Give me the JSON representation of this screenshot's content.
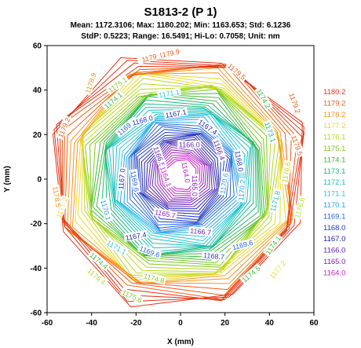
{
  "chart_data": {
    "type": "contour",
    "title": "S1813-2 (P 1)",
    "stats_line1": "Mean: 1172.3106; Max: 1180.202; Min: 1163.653; Std: 6.1236",
    "stats_line2": "StdP: 0.5223; Range: 16.5491; Hi-Lo: 0.7058; Unit: nm",
    "xlabel": "X (mm)",
    "ylabel": "Y (mm)",
    "xlim": [
      -60,
      60
    ],
    "ylim": [
      -60,
      60
    ],
    "xticks": [
      -60,
      -40,
      -20,
      0,
      20,
      40,
      60
    ],
    "yticks": [
      -60,
      -40,
      -20,
      0,
      20,
      40,
      60
    ],
    "wafer_radius": 60,
    "grid": false,
    "legend_position": "right",
    "legend": [
      {
        "label": "1180.2",
        "color": "#e53214"
      },
      {
        "label": "1179.2",
        "color": "#ef5a14"
      },
      {
        "label": "1178.2",
        "color": "#f7941e"
      },
      {
        "label": "1177.2",
        "color": "#e8d82a"
      },
      {
        "label": "1176.1",
        "color": "#b6d91c"
      },
      {
        "label": "1175.1",
        "color": "#7cc81e"
      },
      {
        "label": "1174.1",
        "color": "#3cb83c"
      },
      {
        "label": "1173.1",
        "color": "#1eb87a"
      },
      {
        "label": "1172.1",
        "color": "#1cc0b4"
      },
      {
        "label": "1171.1",
        "color": "#28c8e0"
      },
      {
        "label": "1170.1",
        "color": "#2aa0e6"
      },
      {
        "label": "1169.1",
        "color": "#2266dc"
      },
      {
        "label": "1168.0",
        "color": "#1c3cc8"
      },
      {
        "label": "1167.0",
        "color": "#1e1ea6"
      },
      {
        "label": "1166.0",
        "color": "#5a1eb0"
      },
      {
        "label": "1165.0",
        "color": "#8e1eb8"
      },
      {
        "label": "1164.0",
        "color": "#c81ec8"
      }
    ],
    "contour_labels": [
      {
        "text": "1179.9",
        "x": -5,
        "y": 56,
        "angle": -12,
        "color": "#ef5a14"
      },
      {
        "text": "1179",
        "x": -14,
        "y": 54,
        "angle": -15,
        "color": "#ef5a14"
      },
      {
        "text": "1179.5",
        "x": 25,
        "y": 48,
        "angle": 40,
        "color": "#ef5a14"
      },
      {
        "text": "1178.9",
        "x": -40,
        "y": 43,
        "angle": -72,
        "color": "#f7941e"
      },
      {
        "text": "1179.2",
        "x": 51,
        "y": 34,
        "angle": 70,
        "color": "#ef5a14"
      },
      {
        "text": "1179.2",
        "x": -52,
        "y": 23,
        "angle": -68,
        "color": "#ef5a14"
      },
      {
        "text": "1179.5",
        "x": 52,
        "y": 15,
        "angle": 70,
        "color": "#ef5a14"
      },
      {
        "text": "1175.1",
        "x": -28,
        "y": 42,
        "angle": -35,
        "color": "#7cc81e"
      },
      {
        "text": "1174.1",
        "x": -30,
        "y": 35,
        "angle": -40,
        "color": "#3cb83c"
      },
      {
        "text": "1171.1",
        "x": -5,
        "y": 38,
        "angle": -10,
        "color": "#28c8e0"
      },
      {
        "text": "1174.2",
        "x": 37,
        "y": 36,
        "angle": 60,
        "color": "#3cb83c"
      },
      {
        "text": "1173.1",
        "x": 40,
        "y": 21,
        "angle": 70,
        "color": "#1eb87a"
      },
      {
        "text": "1169.4",
        "x": -24,
        "y": 23,
        "angle": -40,
        "color": "#2266dc"
      },
      {
        "text": "1168.0",
        "x": -17,
        "y": 26,
        "angle": -15,
        "color": "#1c3cc8"
      },
      {
        "text": "1167.1",
        "x": -2,
        "y": 29,
        "angle": -10,
        "color": "#1e1ea6"
      },
      {
        "text": "1167.4",
        "x": 12,
        "y": 23,
        "angle": 35,
        "color": "#1e1ea6"
      },
      {
        "text": "1166.0",
        "x": 4,
        "y": 15,
        "angle": 0,
        "color": "#5a1eb0"
      },
      {
        "text": "1166.4",
        "x": 17,
        "y": 13,
        "angle": 70,
        "color": "#5a1eb0"
      },
      {
        "text": "1166.5",
        "x": -10,
        "y": 10,
        "angle": 70,
        "color": "#5a1eb0"
      },
      {
        "text": "1164.0",
        "x": 2,
        "y": 3,
        "angle": 80,
        "color": "#c81ec8"
      },
      {
        "text": "1164.1",
        "x": -7,
        "y": 1,
        "angle": 70,
        "color": "#c81ec8"
      },
      {
        "text": "1165.0",
        "x": 6,
        "y": -3,
        "angle": 90,
        "color": "#8e1eb8"
      },
      {
        "text": "1169.6",
        "x": -21,
        "y": -1,
        "angle": 80,
        "color": "#2266dc"
      },
      {
        "text": "1167.0",
        "x": -26,
        "y": 0,
        "angle": -85,
        "color": "#1e1ea6"
      },
      {
        "text": "1168.0",
        "x": 26,
        "y": 8,
        "angle": 80,
        "color": "#1c3cc8"
      },
      {
        "text": "1170.6",
        "x": 20,
        "y": -2,
        "angle": -80,
        "color": "#2aa0e6"
      },
      {
        "text": "1170.2",
        "x": 28,
        "y": -5,
        "angle": -85,
        "color": "#2aa0e6"
      },
      {
        "text": "1165.7",
        "x": -7,
        "y": -16,
        "angle": 10,
        "color": "#8e1eb8"
      },
      {
        "text": "1167.4",
        "x": -20,
        "y": -26,
        "angle": -10,
        "color": "#1e1ea6"
      },
      {
        "text": "1166.7",
        "x": 9,
        "y": -24,
        "angle": 5,
        "color": "#5a1eb0"
      },
      {
        "text": "1168.7",
        "x": 15,
        "y": -35,
        "angle": 5,
        "color": "#1c3cc8"
      },
      {
        "text": "1169.6",
        "x": -14,
        "y": -33,
        "angle": 20,
        "color": "#2266dc"
      },
      {
        "text": "1169.6",
        "x": 28,
        "y": -30,
        "angle": -15,
        "color": "#2266dc"
      },
      {
        "text": "1171.1",
        "x": -29,
        "y": -31,
        "angle": 30,
        "color": "#28c8e0"
      },
      {
        "text": "1171.8",
        "x": 43,
        "y": -10,
        "angle": -75,
        "color": "#1cc0b4"
      },
      {
        "text": "1170.1",
        "x": -34,
        "y": -14,
        "angle": 75,
        "color": "#2aa0e6"
      },
      {
        "text": "1174.1",
        "x": 42,
        "y": -30,
        "angle": -55,
        "color": "#3cb83c"
      },
      {
        "text": "1174.4",
        "x": -37,
        "y": -37,
        "angle": 40,
        "color": "#3cb83c"
      },
      {
        "text": "1174.5",
        "x": 32,
        "y": -43,
        "angle": -40,
        "color": "#3cb83c"
      },
      {
        "text": "1176.4",
        "x": -38,
        "y": -44,
        "angle": 40,
        "color": "#b6d91c"
      },
      {
        "text": "1174.8",
        "x": -12,
        "y": -45,
        "angle": 15,
        "color": "#7cc81e"
      },
      {
        "text": "1175.6",
        "x": -22,
        "y": -53,
        "angle": 25,
        "color": "#7cc81e"
      },
      {
        "text": "1177.2",
        "x": 44,
        "y": -41,
        "angle": -50,
        "color": "#e8d82a"
      },
      {
        "text": "1176.6",
        "x": 48,
        "y": 3,
        "angle": -80,
        "color": "#b6d91c"
      },
      {
        "text": "1177.2",
        "x": -53,
        "y": -13,
        "angle": -70,
        "color": "#e8d82a"
      },
      {
        "text": "1178.5",
        "x": -56,
        "y": -8,
        "angle": 80,
        "color": "#f7941e"
      },
      {
        "text": "1176.6",
        "x": 54,
        "y": -13,
        "angle": -75,
        "color": "#b6d91c"
      }
    ]
  }
}
